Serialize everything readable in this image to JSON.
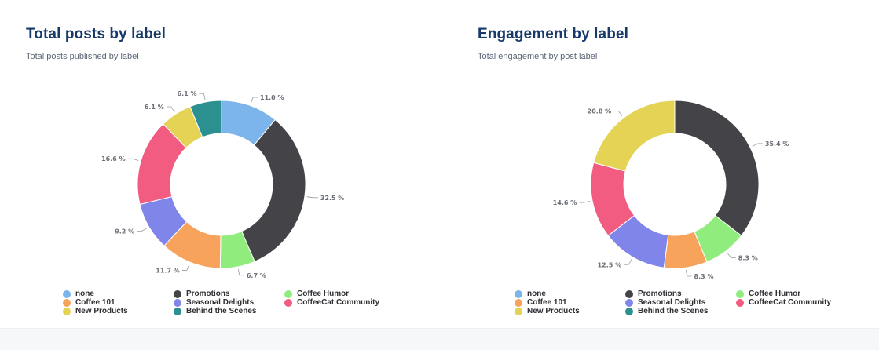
{
  "colors": {
    "none": "#7cb5ec",
    "Promotions": "#434348",
    "Coffee Humor": "#90ed7d",
    "Coffee 101": "#f7a35c",
    "Seasonal Delights": "#8085e9",
    "CoffeeCat Community": "#f15c80",
    "New Products": "#e4d354",
    "Behind the Scenes": "#2b908f"
  },
  "legend_labels": [
    "none",
    "Promotions",
    "Coffee Humor",
    "Coffee 101",
    "Seasonal Delights",
    "CoffeeCat Community",
    "New Products",
    "Behind the Scenes"
  ],
  "chart_data": [
    {
      "type": "pie",
      "donut": true,
      "title": "Total posts by label",
      "subtitle": "Total posts published by label",
      "slices": [
        {
          "label": "none",
          "value": 11.0,
          "text": "11.0 %"
        },
        {
          "label": "Promotions",
          "value": 32.5,
          "text": "32.5 %"
        },
        {
          "label": "Coffee Humor",
          "value": 6.7,
          "text": "6.7 %"
        },
        {
          "label": "Coffee 101",
          "value": 11.7,
          "text": "11.7 %"
        },
        {
          "label": "Seasonal Delights",
          "value": 9.2,
          "text": "9.2 %"
        },
        {
          "label": "CoffeeCat Community",
          "value": 16.6,
          "text": "16.6 %"
        },
        {
          "label": "New Products",
          "value": 6.1,
          "text": "6.1 %"
        },
        {
          "label": "Behind the Scenes",
          "value": 6.1,
          "text": "6.1 %"
        }
      ],
      "legend_position": "bottom"
    },
    {
      "type": "pie",
      "donut": true,
      "title": "Engagement by label",
      "subtitle": "Total engagement by post label",
      "slices": [
        {
          "label": "none",
          "value": 0,
          "text": ""
        },
        {
          "label": "Promotions",
          "value": 35.4,
          "text": "35.4 %"
        },
        {
          "label": "Coffee Humor",
          "value": 8.3,
          "text": "8.3 %"
        },
        {
          "label": "Coffee 101",
          "value": 8.3,
          "text": "8.3 %"
        },
        {
          "label": "Seasonal Delights",
          "value": 12.5,
          "text": "12.5 %"
        },
        {
          "label": "CoffeeCat Community",
          "value": 14.6,
          "text": "14.6 %"
        },
        {
          "label": "New Products",
          "value": 20.8,
          "text": "20.8 %"
        },
        {
          "label": "Behind the Scenes",
          "value": 0,
          "text": ""
        }
      ],
      "legend_position": "bottom"
    }
  ]
}
